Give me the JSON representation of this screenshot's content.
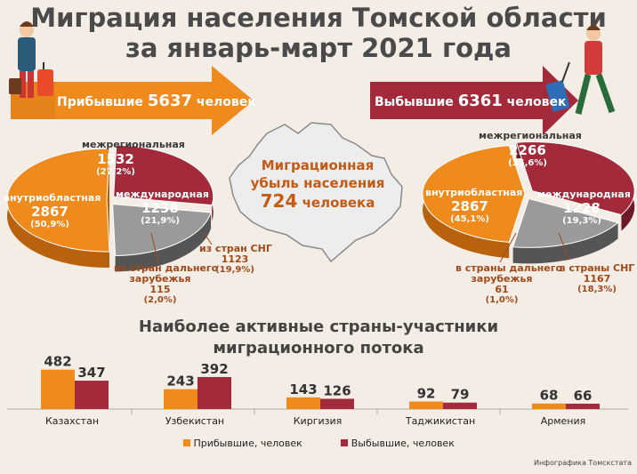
{
  "title": {
    "line1": "Миграция населения Томской области",
    "line2": "за январь-март 2021 года"
  },
  "colors": {
    "orange": "#ef8a1c",
    "maroon": "#a32a3a",
    "gray": "#9a9a9a",
    "bg": "#f4ede6"
  },
  "arrivals": {
    "label": "Прибывшие",
    "value": "5637",
    "unit": "человек"
  },
  "departures": {
    "label": "Выбывшие",
    "value": "6361",
    "unit": "человек"
  },
  "center": {
    "line1": "Миграционная",
    "line2": "убыль населения",
    "value": "724",
    "unit": "человека"
  },
  "pie_left": {
    "interregional": {
      "label": "межрегиональная",
      "value": "1532",
      "pct": "(27,2%)"
    },
    "intraregional": {
      "label": "внутриобластная",
      "value": "2867",
      "pct": "(50,9%)"
    },
    "international": {
      "label": "международная",
      "value": "1238",
      "pct": "(21,9%)"
    },
    "far_abroad": {
      "line1": "из стран  дальнего",
      "line2": "зарубежья",
      "value": "115",
      "pct": "(2,0%)"
    },
    "cis": {
      "label": "из стран СНГ",
      "value": "1123",
      "pct": "(19,9%)"
    }
  },
  "pie_right": {
    "interregional": {
      "label": "межрегиональная",
      "value": "2266",
      "pct": "(35,6%)"
    },
    "intraregional": {
      "label": "внутриобластная",
      "value": "2867",
      "pct": "(45,1%)"
    },
    "international": {
      "label": "международная",
      "value": "1228",
      "pct": "(19,3%)"
    },
    "far_abroad": {
      "line1": "в страны  дальнего",
      "line2": "зарубежья",
      "value": "61",
      "pct": "(1,0%)"
    },
    "cis": {
      "label": "в страны СНГ",
      "value": "1167",
      "pct": "(18,3%)"
    }
  },
  "bar_section": {
    "title_line1": "Наиболее активные страны-участники",
    "title_line2": "миграционного потока"
  },
  "chart_data": [
    {
      "type": "pie",
      "categories": [
        "внутриобластная",
        "межрегиональная",
        "международная"
      ],
      "values": [
        2867,
        1532,
        1238
      ],
      "percent": [
        50.9,
        27.2,
        21.9
      ]
    },
    {
      "type": "pie",
      "categories": [
        "внутриобластная",
        "межрегиональная",
        "международная"
      ],
      "values": [
        2867,
        2266,
        1228
      ],
      "percent": [
        45.1,
        35.6,
        19.3
      ]
    },
    {
      "type": "bar",
      "categories": [
        "Казахстан",
        "Узбекистан",
        "Киргизия",
        "Таджикистан",
        "Армения"
      ],
      "series": [
        {
          "name": "Прибывшие, человек",
          "values": [
            482,
            243,
            143,
            92,
            68
          ]
        },
        {
          "name": "Выбывшие, человек",
          "values": [
            347,
            392,
            126,
            79,
            66
          ]
        }
      ],
      "ylim": [
        0,
        500
      ],
      "legend": "bottom"
    }
  ],
  "credit": "Инфографика Томскстата"
}
